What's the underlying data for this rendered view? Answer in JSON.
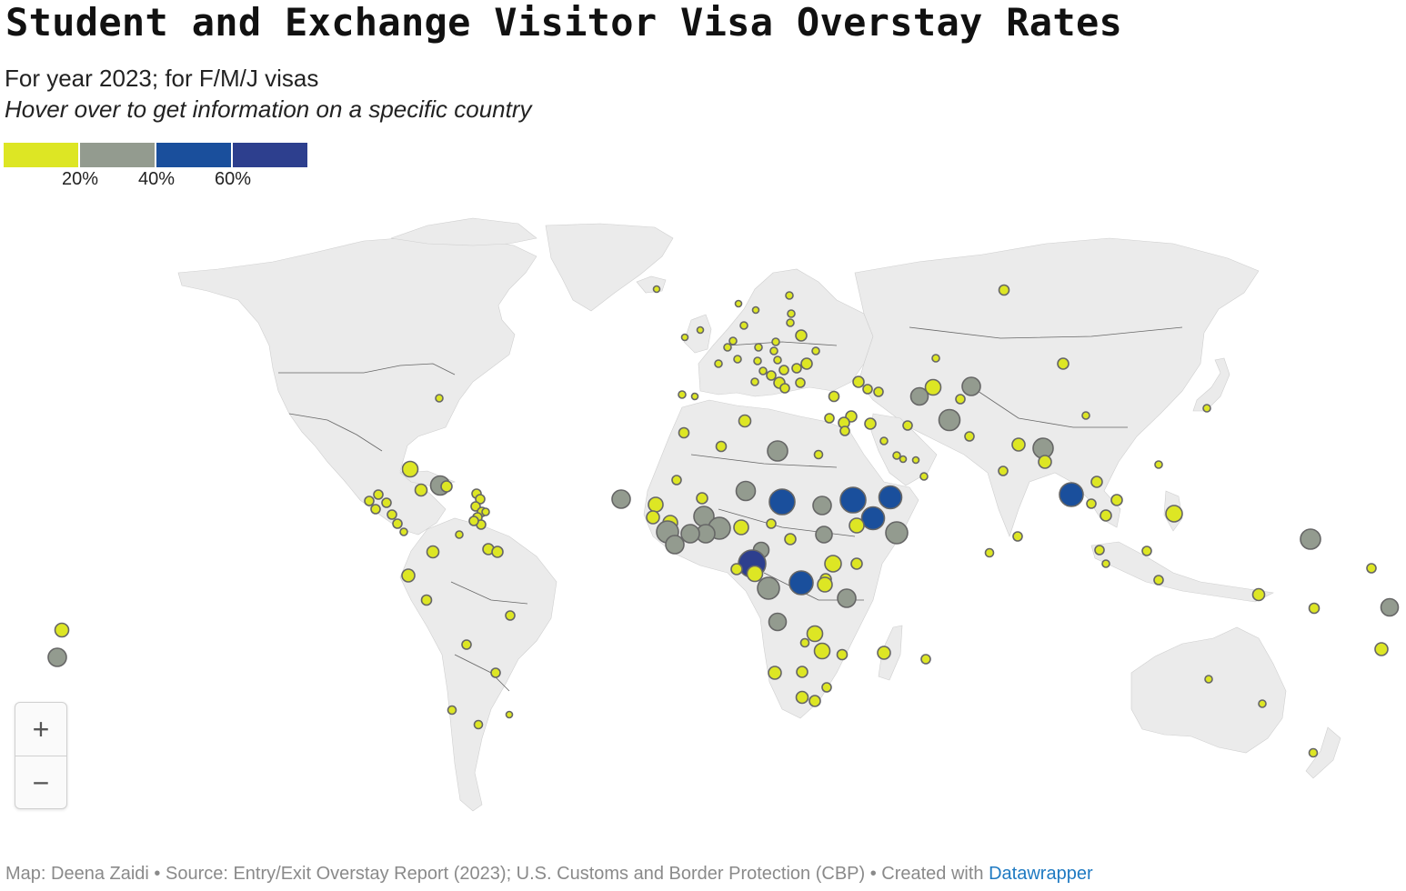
{
  "title": "Student and Exchange Visitor Visa Overstay Rates",
  "subtitle": "For year 2023; for F/M/J visas",
  "note": "Hover over to get information on a specific country",
  "legend": {
    "colors": [
      "#dde624",
      "#939b8f",
      "#1a4f9c",
      "#2d3f8e"
    ],
    "labels": [
      "20%",
      "40%",
      "60%"
    ]
  },
  "colors": {
    "land": "#ebebeb",
    "border": "#666666",
    "bubble_stroke": "#666666"
  },
  "zoom": {
    "in_label": "+",
    "out_label": "−"
  },
  "footer": {
    "credit": "Map: Deena Zaidi • Source: Entry/Exit Overstay Report (2023); U.S. Customs and Border Protection (CBP) • Created with ",
    "link_text": "Datawrapper"
  }
}
